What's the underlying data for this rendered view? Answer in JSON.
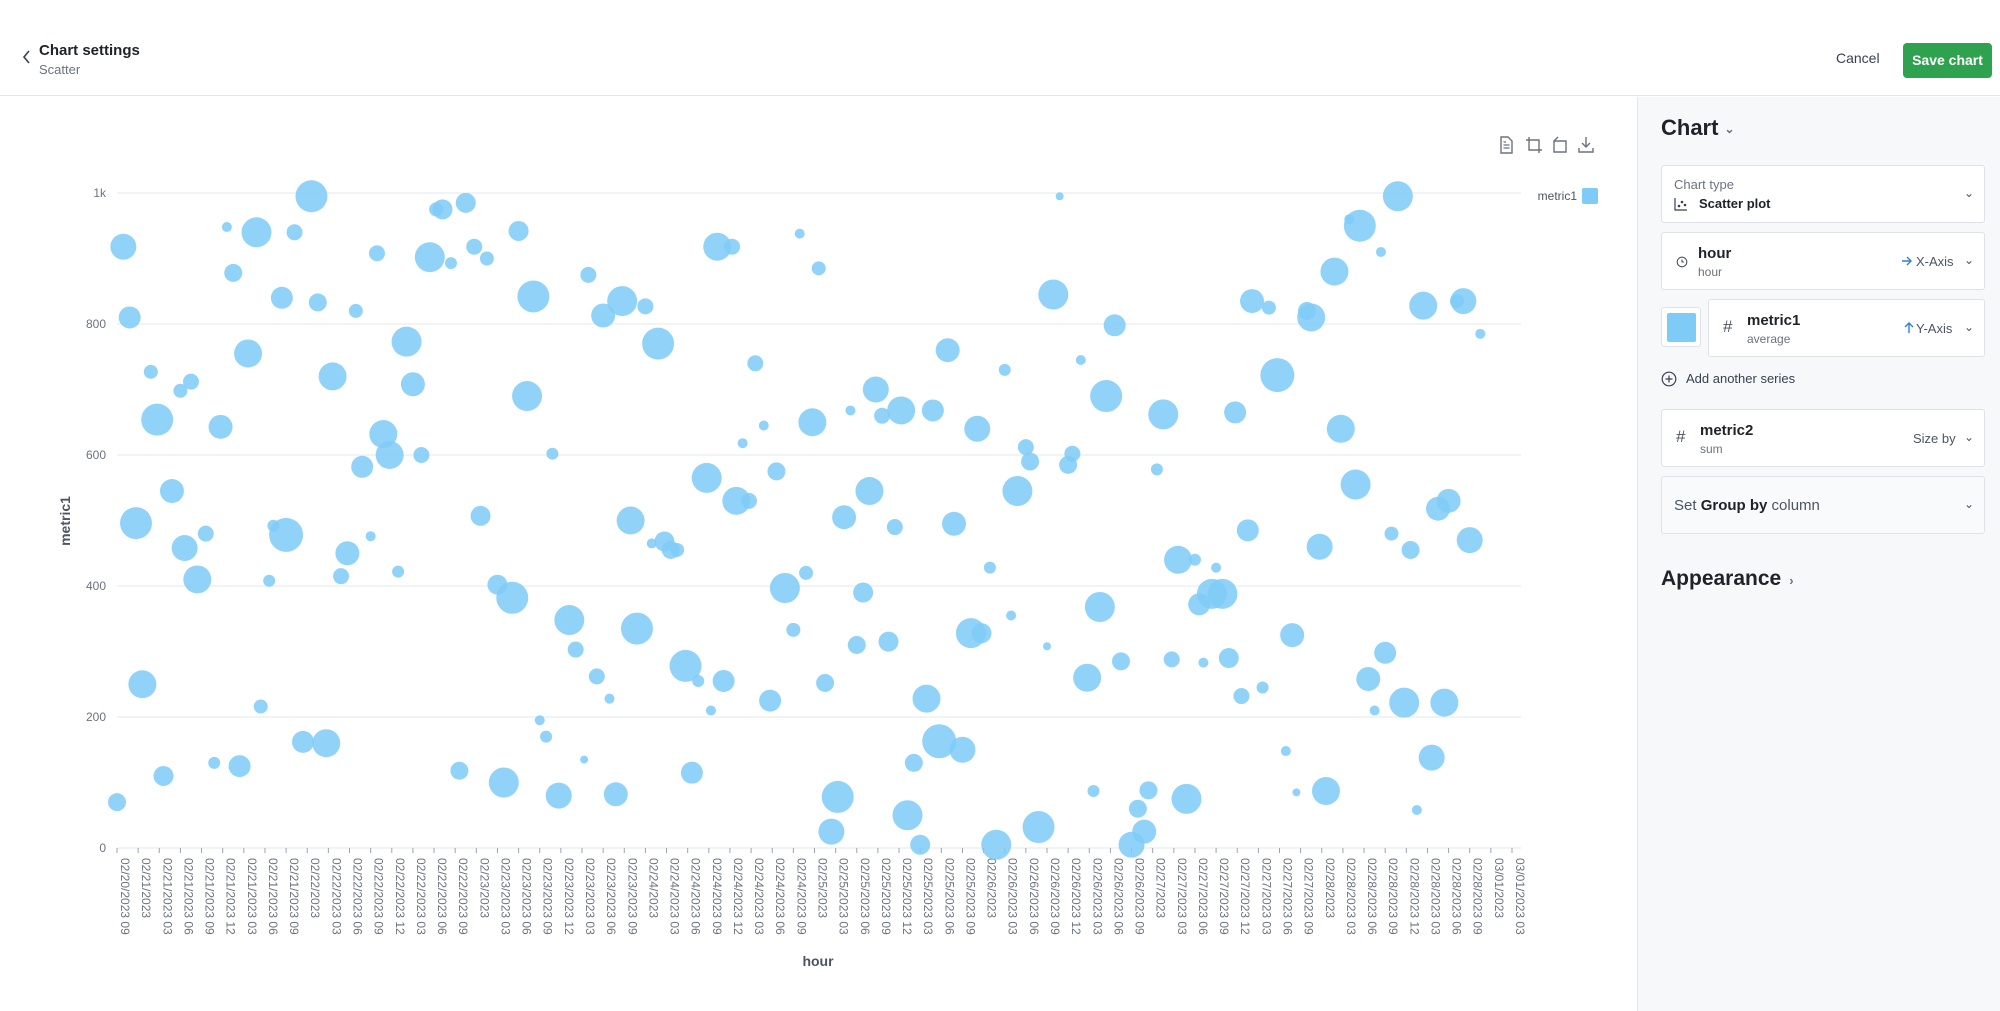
{
  "header": {
    "title": "Chart settings",
    "subtitle": "Scatter",
    "cancel_label": "Cancel",
    "save_label": "Save chart"
  },
  "panel": {
    "title": "Chart",
    "chart_type_label": "Chart type",
    "chart_type_value": "Scatter plot",
    "x_field": "hour",
    "x_field_sub": "hour",
    "x_axis_tag": "X-Axis",
    "y_field": "metric1",
    "y_field_sub": "average",
    "y_axis_tag": "Y-Axis",
    "series_color": "#7ecbf7",
    "add_series_label": "Add another series",
    "size_field": "metric2",
    "size_field_sub": "sum",
    "size_tag": "Size by",
    "group_prefix": "Set ",
    "group_bold": "Group by",
    "group_suffix": " column",
    "appearance_label": "Appearance"
  },
  "toolbar": {
    "icons": [
      "document-icon",
      "crop-icon",
      "rotate-icon",
      "download-icon"
    ]
  },
  "chart_data": {
    "type": "scatter",
    "xlabel": "hour",
    "ylabel": "metric1",
    "ylim": [
      0,
      1000
    ],
    "yticks": [
      "0",
      "200",
      "400",
      "600",
      "800",
      "1k"
    ],
    "legend": [
      "metric1"
    ],
    "legend_placement": "top-right",
    "grid": true,
    "color": "#7ecbf7",
    "xlim": [
      0,
      66
    ],
    "xticks": [
      "02/20/2023 09",
      "02/21/2023",
      "02/21/2023 03",
      "02/21/2023 06",
      "02/21/2023 09",
      "02/21/2023 12",
      "02/21/2023 03",
      "02/21/2023 06",
      "02/21/2023 09",
      "02/22/2023",
      "02/22/2023 03",
      "02/22/2023 06",
      "02/22/2023 09",
      "02/22/2023 12",
      "02/22/2023 03",
      "02/22/2023 06",
      "02/22/2023 09",
      "02/23/2023",
      "02/23/2023 03",
      "02/23/2023 06",
      "02/23/2023 09",
      "02/23/2023 12",
      "02/23/2023 03",
      "02/23/2023 06",
      "02/23/2023 09",
      "02/24/2023",
      "02/24/2023 03",
      "02/24/2023 06",
      "02/24/2023 09",
      "02/24/2023 12",
      "02/24/2023 03",
      "02/24/2023 06",
      "02/24/2023 09",
      "02/25/2023",
      "02/25/2023 03",
      "02/25/2023 06",
      "02/25/2023 09",
      "02/25/2023 12",
      "02/25/2023 03",
      "02/25/2023 06",
      "02/25/2023 09",
      "02/26/2023",
      "02/26/2023 03",
      "02/26/2023 06",
      "02/26/2023 09",
      "02/26/2023 12",
      "02/26/2023 03",
      "02/26/2023 06",
      "02/26/2023 09",
      "02/27/2023",
      "02/27/2023 03",
      "02/27/2023 06",
      "02/27/2023 09",
      "02/27/2023 12",
      "02/27/2023 03",
      "02/27/2023 06",
      "02/27/2023 09",
      "02/28/2023",
      "02/28/2023 03",
      "02/28/2023 06",
      "02/28/2023 09",
      "02/28/2023 12",
      "02/28/2023 03",
      "02/28/2023 06",
      "02/28/2023 09",
      "03/01/2023",
      "03/01/2023 03"
    ],
    "points": [
      [
        0,
        70,
        9
      ],
      [
        0.3,
        918,
        13
      ],
      [
        0.6,
        810,
        11
      ],
      [
        0.9,
        496,
        16
      ],
      [
        1.2,
        250,
        14
      ],
      [
        1.6,
        727,
        7
      ],
      [
        1.9,
        654,
        16
      ],
      [
        2.2,
        110,
        10
      ],
      [
        2.6,
        545,
        12
      ],
      [
        3.0,
        698,
        7
      ],
      [
        3.2,
        458,
        13
      ],
      [
        3.5,
        712,
        8
      ],
      [
        3.8,
        410,
        14
      ],
      [
        4.2,
        480,
        8
      ],
      [
        4.6,
        130,
        6
      ],
      [
        4.9,
        643,
        12
      ],
      [
        5.2,
        948,
        5
      ],
      [
        5.5,
        878,
        9
      ],
      [
        5.8,
        125,
        11
      ],
      [
        6.2,
        755,
        14
      ],
      [
        6.6,
        940,
        15
      ],
      [
        6.8,
        216,
        7
      ],
      [
        7.2,
        408,
        6
      ],
      [
        7.4,
        492,
        6
      ],
      [
        7.8,
        840,
        11
      ],
      [
        8.0,
        478,
        17
      ],
      [
        8.4,
        940,
        8
      ],
      [
        8.8,
        162,
        11
      ],
      [
        9.2,
        995,
        16
      ],
      [
        9.5,
        833,
        9
      ],
      [
        9.9,
        160,
        14
      ],
      [
        10.2,
        720,
        14
      ],
      [
        10.6,
        415,
        8
      ],
      [
        10.9,
        450,
        12
      ],
      [
        11.3,
        820,
        7
      ],
      [
        11.6,
        582,
        11
      ],
      [
        12.0,
        476,
        5
      ],
      [
        12.3,
        908,
        8
      ],
      [
        12.6,
        632,
        14
      ],
      [
        12.9,
        600,
        14
      ],
      [
        13.3,
        422,
        6
      ],
      [
        13.7,
        773,
        15
      ],
      [
        14.0,
        708,
        12
      ],
      [
        14.4,
        600,
        8
      ],
      [
        14.8,
        902,
        15
      ],
      [
        15.1,
        975,
        7
      ],
      [
        15.4,
        975,
        10
      ],
      [
        15.8,
        893,
        6
      ],
      [
        16.2,
        118,
        9
      ],
      [
        16.5,
        985,
        10
      ],
      [
        16.9,
        918,
        8
      ],
      [
        17.2,
        507,
        10
      ],
      [
        17.5,
        900,
        7
      ],
      [
        18.0,
        402,
        10
      ],
      [
        18.3,
        100,
        15
      ],
      [
        18.7,
        382,
        16
      ],
      [
        19.0,
        942,
        10
      ],
      [
        19.4,
        690,
        15
      ],
      [
        19.7,
        842,
        16
      ],
      [
        20.0,
        195,
        5
      ],
      [
        20.3,
        170,
        6
      ],
      [
        20.6,
        602,
        6
      ],
      [
        20.9,
        80,
        13
      ],
      [
        21.4,
        348,
        15
      ],
      [
        21.7,
        303,
        8
      ],
      [
        22.1,
        135,
        4
      ],
      [
        22.3,
        875,
        8
      ],
      [
        22.7,
        262,
        8
      ],
      [
        23.0,
        813,
        12
      ],
      [
        23.3,
        228,
        5
      ],
      [
        23.6,
        82,
        12
      ],
      [
        23.9,
        835,
        15
      ],
      [
        24.3,
        500,
        14
      ],
      [
        24.6,
        335,
        16
      ],
      [
        25.0,
        827,
        8
      ],
      [
        25.3,
        465,
        5
      ],
      [
        25.6,
        770,
        16
      ],
      [
        25.9,
        468,
        10
      ],
      [
        26.2,
        455,
        9
      ],
      [
        26.5,
        455,
        7
      ],
      [
        26.9,
        278,
        16
      ],
      [
        27.2,
        115,
        11
      ],
      [
        27.5,
        255,
        6
      ],
      [
        27.9,
        565,
        15
      ],
      [
        28.1,
        210,
        5
      ],
      [
        28.4,
        918,
        14
      ],
      [
        28.7,
        255,
        11
      ],
      [
        29.1,
        918,
        8
      ],
      [
        29.3,
        530,
        14
      ],
      [
        29.6,
        618,
        5
      ],
      [
        29.9,
        530,
        8
      ],
      [
        30.2,
        740,
        8
      ],
      [
        30.6,
        645,
        5
      ],
      [
        30.9,
        225,
        11
      ],
      [
        31.2,
        575,
        9
      ],
      [
        31.6,
        397,
        15
      ],
      [
        32.0,
        333,
        7
      ],
      [
        32.3,
        938,
        5
      ],
      [
        32.6,
        420,
        7
      ],
      [
        32.9,
        650,
        14
      ],
      [
        33.2,
        885,
        7
      ],
      [
        33.5,
        252,
        9
      ],
      [
        33.8,
        25,
        13
      ],
      [
        34.1,
        78,
        16
      ],
      [
        34.4,
        505,
        12
      ],
      [
        34.7,
        668,
        5
      ],
      [
        35.0,
        310,
        9
      ],
      [
        35.3,
        390,
        10
      ],
      [
        35.6,
        545,
        14
      ],
      [
        35.9,
        700,
        13
      ],
      [
        36.2,
        660,
        8
      ],
      [
        36.5,
        315,
        10
      ],
      [
        36.8,
        490,
        8
      ],
      [
        37.1,
        668,
        14
      ],
      [
        37.4,
        50,
        15
      ],
      [
        37.7,
        130,
        9
      ],
      [
        38.0,
        5,
        10
      ],
      [
        38.3,
        228,
        14
      ],
      [
        38.6,
        668,
        11
      ],
      [
        38.9,
        163,
        17
      ],
      [
        39.3,
        760,
        12
      ],
      [
        39.6,
        495,
        12
      ],
      [
        40.0,
        150,
        13
      ],
      [
        40.4,
        328,
        15
      ],
      [
        40.7,
        640,
        13
      ],
      [
        40.9,
        328,
        10
      ],
      [
        41.3,
        428,
        6
      ],
      [
        41.6,
        5,
        15
      ],
      [
        42.0,
        730,
        6
      ],
      [
        42.3,
        355,
        5
      ],
      [
        42.6,
        545,
        15
      ],
      [
        43.0,
        612,
        8
      ],
      [
        43.2,
        590,
        9
      ],
      [
        43.6,
        32,
        16
      ],
      [
        44.0,
        308,
        4
      ],
      [
        44.3,
        845,
        15
      ],
      [
        44.6,
        995,
        4
      ],
      [
        45.0,
        585,
        9
      ],
      [
        45.2,
        602,
        8
      ],
      [
        45.6,
        745,
        5
      ],
      [
        45.9,
        260,
        14
      ],
      [
        46.2,
        87,
        6
      ],
      [
        46.5,
        368,
        15
      ],
      [
        46.8,
        690,
        16
      ],
      [
        47.2,
        798,
        11
      ],
      [
        47.5,
        285,
        9
      ],
      [
        48.0,
        5,
        13
      ],
      [
        48.3,
        60,
        9
      ],
      [
        48.6,
        25,
        12
      ],
      [
        48.8,
        88,
        9
      ],
      [
        49.2,
        578,
        6
      ],
      [
        49.5,
        662,
        15
      ],
      [
        49.9,
        288,
        8
      ],
      [
        50.2,
        440,
        14
      ],
      [
        50.6,
        75,
        15
      ],
      [
        51.0,
        440,
        6
      ],
      [
        51.2,
        372,
        11
      ],
      [
        51.4,
        283,
        5
      ],
      [
        51.8,
        388,
        15
      ],
      [
        52.0,
        428,
        5
      ],
      [
        52.3,
        388,
        15
      ],
      [
        52.6,
        290,
        10
      ],
      [
        52.9,
        665,
        11
      ],
      [
        53.2,
        232,
        8
      ],
      [
        53.5,
        485,
        11
      ],
      [
        53.7,
        835,
        12
      ],
      [
        54.2,
        245,
        6
      ],
      [
        54.5,
        825,
        7
      ],
      [
        54.9,
        722,
        17
      ],
      [
        55.3,
        148,
        5
      ],
      [
        55.6,
        325,
        12
      ],
      [
        55.8,
        85,
        4
      ],
      [
        56.3,
        820,
        9
      ],
      [
        56.5,
        810,
        14
      ],
      [
        56.9,
        460,
        13
      ],
      [
        57.2,
        87,
        14
      ],
      [
        57.6,
        880,
        14
      ],
      [
        57.9,
        640,
        14
      ],
      [
        58.3,
        960,
        5
      ],
      [
        58.6,
        555,
        15
      ],
      [
        58.8,
        950,
        16
      ],
      [
        59.2,
        258,
        12
      ],
      [
        59.5,
        210,
        5
      ],
      [
        59.8,
        910,
        5
      ],
      [
        60.0,
        298,
        11
      ],
      [
        60.3,
        480,
        7
      ],
      [
        60.6,
        995,
        15
      ],
      [
        60.9,
        222,
        15
      ],
      [
        61.2,
        455,
        9
      ],
      [
        61.5,
        58,
        5
      ],
      [
        61.8,
        828,
        14
      ],
      [
        62.2,
        138,
        13
      ],
      [
        62.5,
        518,
        12
      ],
      [
        62.8,
        222,
        14
      ],
      [
        63.0,
        530,
        12
      ],
      [
        63.4,
        835,
        7
      ],
      [
        63.7,
        835,
        13
      ],
      [
        64.0,
        470,
        13
      ],
      [
        64.5,
        785,
        5
      ]
    ]
  }
}
